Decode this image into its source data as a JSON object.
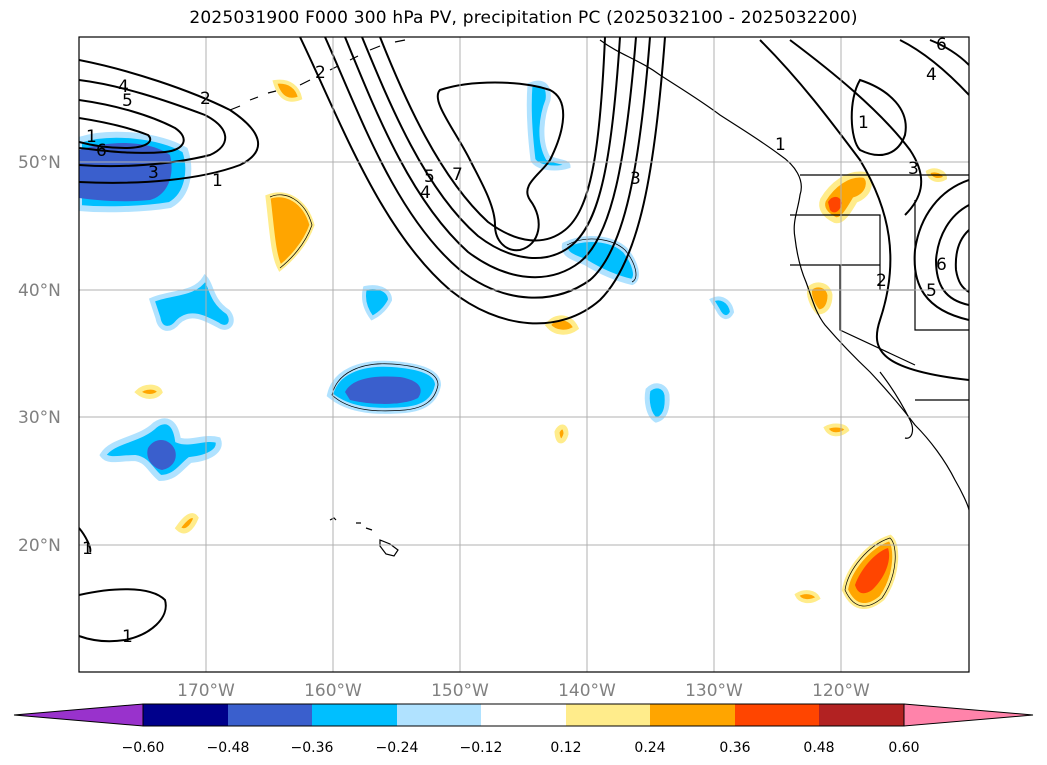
{
  "title": "2025031900 F000 300 hPa PV, precipitation PC (2025032100 - 2025032200)",
  "latitude_labels": [
    "50°N",
    "40°N",
    "30°N",
    "20°N"
  ],
  "longitude_labels": [
    "170°W",
    "160°W",
    "150°W",
    "140°W",
    "130°W",
    "120°W"
  ],
  "colorbar": {
    "colors": [
      "#9932cc",
      "#00008b",
      "#3a5fcd",
      "#00bfff",
      "#b0e2ff",
      "#ffffff",
      "#ffec8b",
      "#ffa500",
      "#ff4500",
      "#b22222",
      "#ff83aa"
    ],
    "tick_labels": [
      "−0.60",
      "−0.48",
      "−0.36",
      "−0.24",
      "−0.12",
      "0.12",
      "0.24",
      "0.36",
      "0.48",
      "0.60"
    ]
  },
  "contour_labels": [
    "4",
    "5",
    "2",
    "2",
    "1",
    "6",
    "3",
    "1",
    "5",
    "4",
    "7",
    "3",
    "1",
    "3",
    "1",
    "2",
    "6",
    "5",
    "4",
    "6",
    "1",
    "1"
  ],
  "chart_data": {
    "type": "contour-map",
    "title": "2025031900 F000 300 hPa PV, precipitation PC (2025032100 - 2025032200)",
    "fields": [
      "300 hPa PV (line contours)",
      "precipitation PC (filled)"
    ],
    "longitude_range": [
      "180°W",
      "110°W"
    ],
    "latitude_range": [
      "10°N",
      "60°N"
    ],
    "grid": true,
    "pv_contour_levels": [
      1,
      2,
      3,
      4,
      5,
      6,
      7
    ],
    "precip_pc_levels": [
      -0.6,
      -0.48,
      -0.36,
      -0.24,
      -0.12,
      0.12,
      0.24,
      0.36,
      0.48,
      0.6
    ],
    "colorbar_extend": "both"
  }
}
